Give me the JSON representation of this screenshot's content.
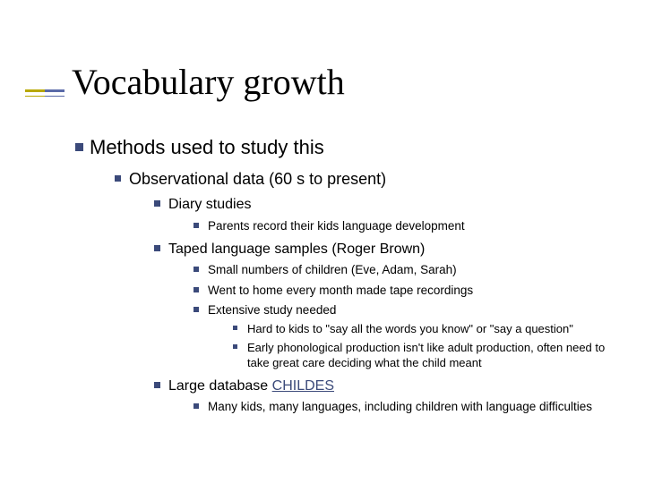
{
  "colors": {
    "accent_a": "#b8a800",
    "accent_b": "#5a6aa8",
    "bullet": "#3b4a7a",
    "link": "#3b4a7a",
    "text": "#000000",
    "background": "#ffffff"
  },
  "title": "Vocabulary growth",
  "outline": {
    "l1": "Methods used to study this",
    "l2": "Observational data (60 s to present)",
    "diary": {
      "heading": "Diary studies",
      "p1": "Parents record their kids language development"
    },
    "taped": {
      "heading": "Taped language samples (Roger Brown)",
      "p1": "Small numbers of children (Eve, Adam, Sarah)",
      "p2": "Went to home every month made tape recordings",
      "p3": "Extensive study needed",
      "p3a": "Hard to kids to \"say all the words you know\" or \"say a question\"",
      "p3b": "Early phonological production isn't like adult production, often need to take great care deciding what the child meant"
    },
    "db": {
      "heading_pre": "Large database ",
      "heading_link": "CHILDES",
      "p1": "Many kids, many languages, including children with language difficulties"
    }
  }
}
